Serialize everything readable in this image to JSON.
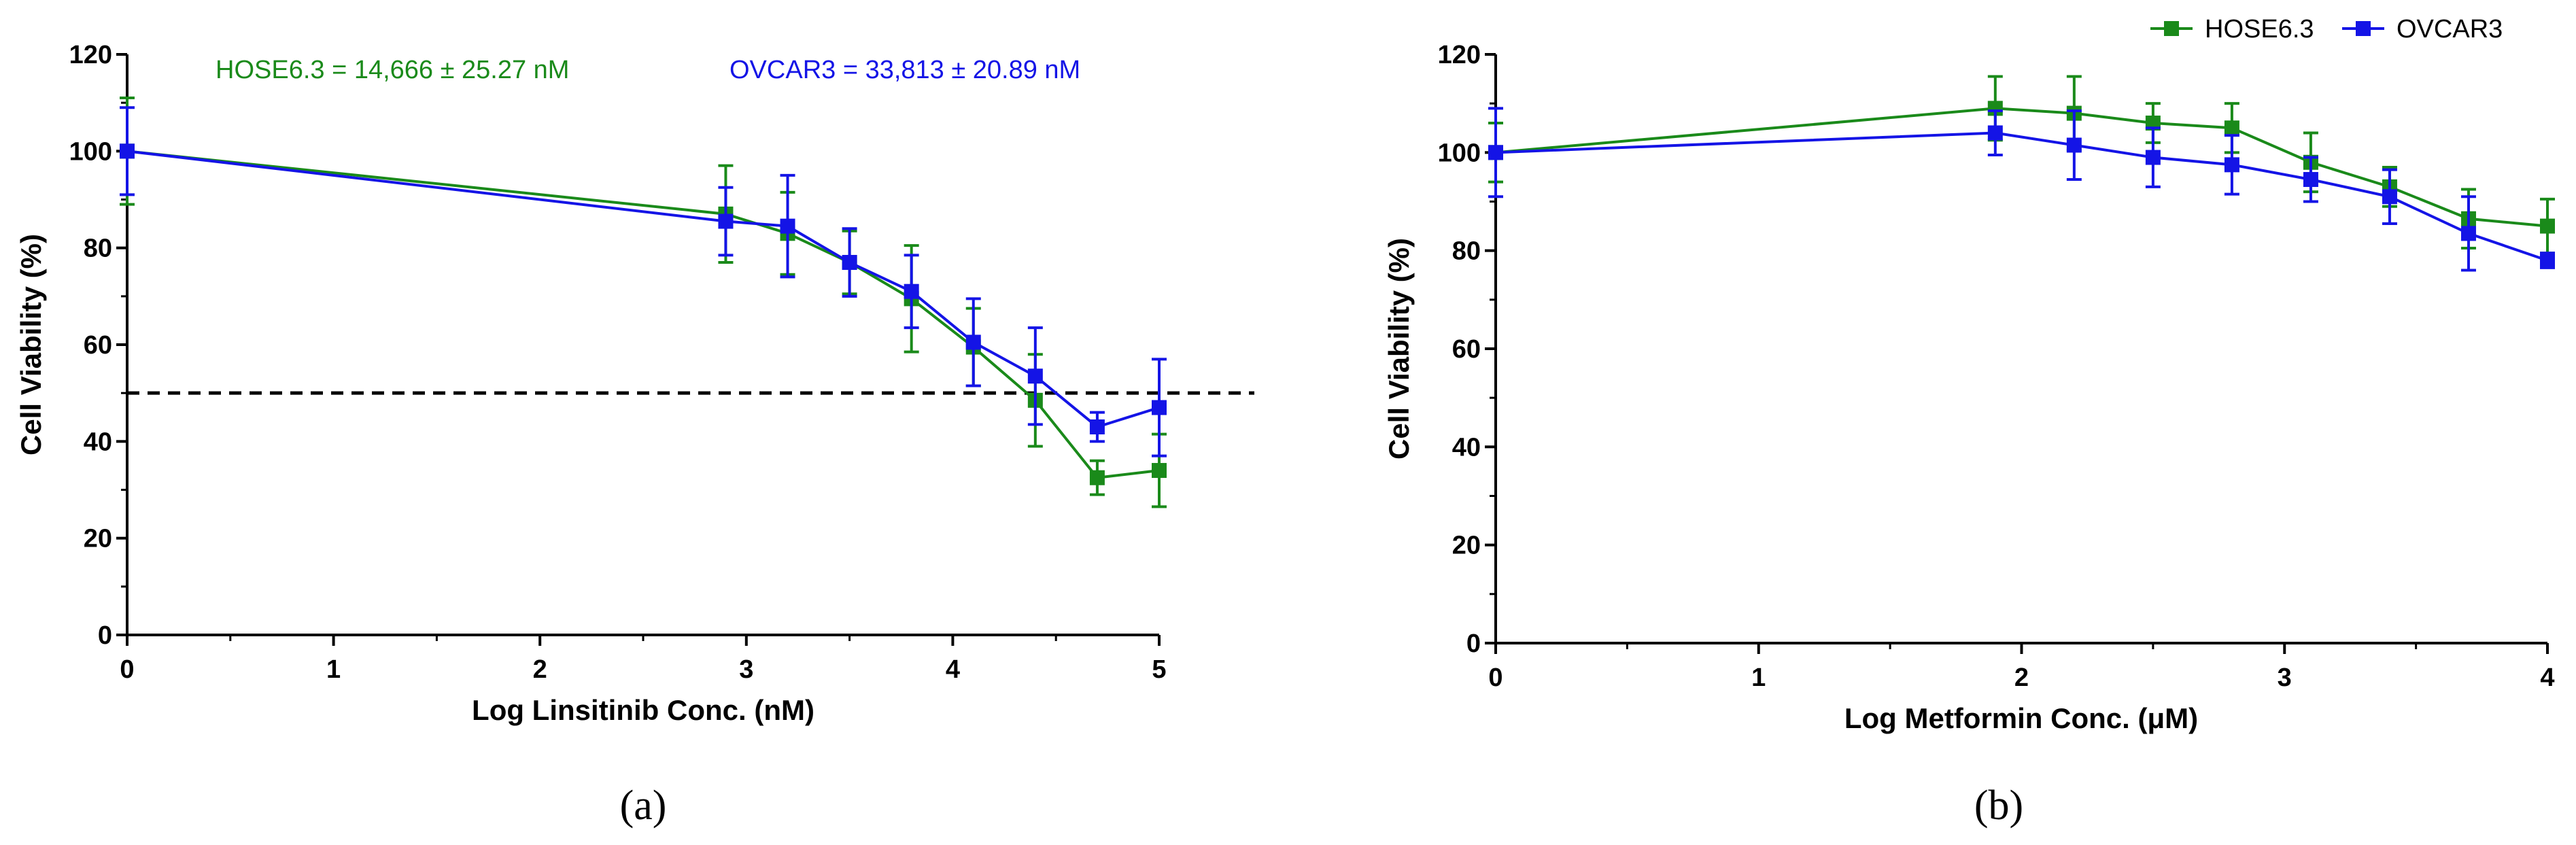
{
  "colors": {
    "hose": "#1a8a1a",
    "ovcar": "#1414e6",
    "axis": "#000000",
    "threshold": "#000000"
  },
  "legend": [
    {
      "name": "HOSE6.3",
      "color": "#1a8a1a",
      "icon": "square-marker-icon"
    },
    {
      "name": "OVCAR3",
      "color": "#1414e6",
      "icon": "square-marker-icon"
    }
  ],
  "chart_data": [
    {
      "type": "line",
      "panel_label": "(a)",
      "xlabel": "Log Linsitinib Conc. (nM)",
      "ylabel": "Cell Viability (%)",
      "xlim": [
        0,
        5
      ],
      "ylim": [
        0,
        120
      ],
      "xticks": [
        0,
        1,
        2,
        3,
        4,
        5
      ],
      "yticks": [
        0,
        20,
        40,
        60,
        80,
        100,
        120
      ],
      "threshold": 50,
      "annotations": [
        {
          "series": "HOSE6.3",
          "text": "HOSE6.3 = 14,666 ± 25.27 nM"
        },
        {
          "series": "OVCAR3",
          "text": "OVCAR3 = 33,813 ± 20.89 nM"
        }
      ],
      "series": [
        {
          "name": "HOSE6.3",
          "x": [
            0,
            2.9,
            3.2,
            3.5,
            3.8,
            4.1,
            4.4,
            4.7,
            5.0
          ],
          "y": [
            100,
            87,
            83,
            77,
            69.5,
            59.5,
            48.5,
            32.5,
            34
          ],
          "err": [
            11,
            10,
            8.5,
            6.5,
            11,
            8,
            9.5,
            3.5,
            7.5
          ]
        },
        {
          "name": "OVCAR3",
          "x": [
            0,
            2.9,
            3.2,
            3.5,
            3.8,
            4.1,
            4.4,
            4.7,
            5.0
          ],
          "y": [
            100,
            85.5,
            84.5,
            77,
            71,
            60.5,
            53.5,
            43,
            47
          ],
          "err": [
            9,
            7,
            10.5,
            7,
            7.5,
            9,
            10,
            3,
            10
          ]
        }
      ]
    },
    {
      "type": "line",
      "panel_label": "(b)",
      "xlabel": "Log Metformin Conc. (μM)",
      "ylabel": "Cell Viability (%)",
      "xlim": [
        0,
        4
      ],
      "ylim": [
        0,
        120
      ],
      "xticks": [
        0,
        1,
        2,
        3,
        4
      ],
      "yticks": [
        0,
        20,
        40,
        60,
        80,
        100,
        120
      ],
      "series": [
        {
          "name": "HOSE6.3",
          "x": [
            0,
            1.9,
            2.2,
            2.5,
            2.8,
            3.1,
            3.4,
            3.7,
            4.0
          ],
          "y": [
            100,
            109,
            108,
            106,
            105,
            98,
            93,
            86.5,
            85
          ],
          "err": [
            6,
            6.5,
            7.5,
            4,
            5,
            6,
            4,
            6,
            5.5
          ]
        },
        {
          "name": "OVCAR3",
          "x": [
            0,
            1.9,
            2.2,
            2.5,
            2.8,
            3.1,
            3.4,
            3.7,
            4.0
          ],
          "y": [
            100,
            104,
            101.5,
            99,
            97.5,
            94.5,
            91,
            83.5,
            78
          ],
          "err": [
            9,
            4.5,
            7,
            6,
            6,
            4.5,
            5.5,
            7.5,
            1.5
          ]
        }
      ]
    }
  ]
}
